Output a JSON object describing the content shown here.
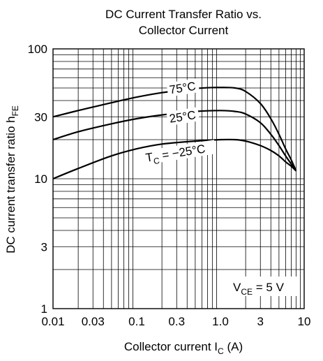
{
  "chart_data": {
    "type": "line",
    "title_line1": "DC Current Transfer Ratio vs.",
    "title_line2": "Collector Current",
    "xlabel": {
      "main": "Collector current  I",
      "sub": "C",
      "unit": "  (A)"
    },
    "ylabel": {
      "main": "DC current transfer ratio  h",
      "sub": "FE"
    },
    "x_scale": "log",
    "y_scale": "log",
    "xlim": [
      0.01,
      10
    ],
    "ylim": [
      1,
      100
    ],
    "grid": true,
    "x_ticks": [
      {
        "value": 0.01,
        "label": "0.01"
      },
      {
        "value": 0.03,
        "label": "0.03"
      },
      {
        "value": 0.1,
        "label": "0.1"
      },
      {
        "value": 0.3,
        "label": "0.3"
      },
      {
        "value": 1,
        "label": "1.0"
      },
      {
        "value": 3,
        "label": "3"
      },
      {
        "value": 10,
        "label": "10"
      }
    ],
    "y_ticks": [
      {
        "value": 1,
        "label": "1"
      },
      {
        "value": 3,
        "label": "3"
      },
      {
        "value": 10,
        "label": "10"
      },
      {
        "value": 30,
        "label": "30"
      },
      {
        "value": 100,
        "label": "100"
      }
    ],
    "condition": {
      "main": "V",
      "sub": "CE",
      "rest": " = 5 V"
    },
    "series": [
      {
        "name": "75°C",
        "label_main": "75°C",
        "label_sub": "",
        "label_rest": "",
        "x": [
          0.01,
          0.02,
          0.05,
          0.1,
          0.2,
          0.5,
          1,
          1.5,
          2,
          3,
          4,
          5,
          6,
          7,
          8
        ],
        "y": [
          30,
          33.5,
          38.5,
          42.5,
          46,
          49.5,
          50.5,
          50,
          47,
          38,
          29,
          22,
          17,
          14,
          11.5
        ]
      },
      {
        "name": "25°C",
        "label_main": "25°C",
        "label_sub": "",
        "label_rest": "",
        "x": [
          0.01,
          0.02,
          0.05,
          0.1,
          0.2,
          0.5,
          1,
          1.5,
          2,
          3,
          4,
          5,
          6,
          7,
          8
        ],
        "y": [
          20,
          23,
          26.5,
          29,
          31,
          33,
          33.5,
          33,
          31.5,
          27,
          22,
          18,
          15,
          13,
          11.5
        ]
      },
      {
        "name": "TC = −25°C",
        "label_main": "T",
        "label_sub": "C",
        "label_rest": " = −25°C",
        "x": [
          0.01,
          0.02,
          0.05,
          0.1,
          0.2,
          0.5,
          1,
          1.5,
          2,
          3,
          4,
          5,
          6,
          7,
          8
        ],
        "y": [
          10,
          12,
          15,
          17,
          18.5,
          19.5,
          20,
          20,
          19.5,
          18,
          16.5,
          15,
          13.5,
          12.5,
          11.5
        ]
      }
    ],
    "label_positions": [
      {
        "x": 0.25,
        "y": 45
      },
      {
        "x": 0.25,
        "y": 27
      },
      {
        "x": 0.13,
        "y": 13.5
      }
    ]
  }
}
